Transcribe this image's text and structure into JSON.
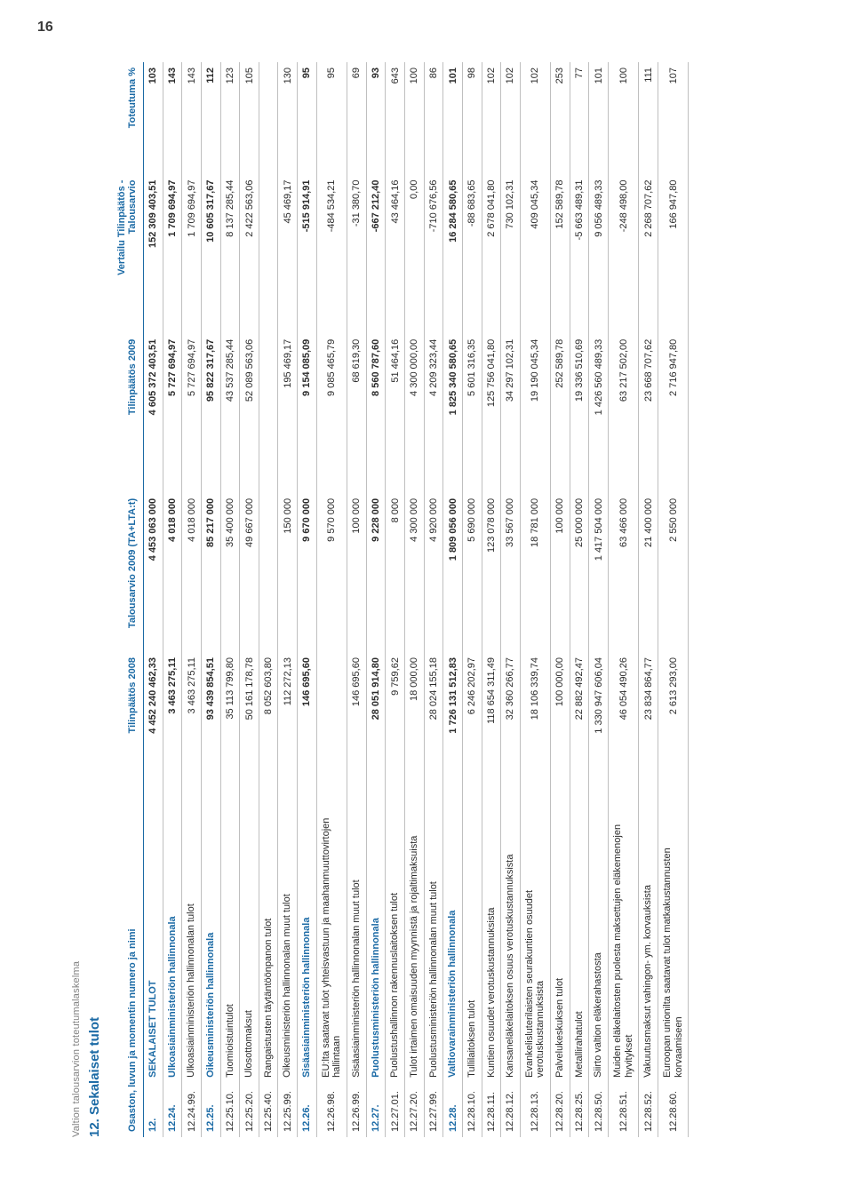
{
  "page_number": "16",
  "supertitle": "Valtion talousarvion toteutumalaskelma",
  "section_title": "12. Sekalaiset tulot",
  "colors": {
    "accent": "#1b6aa5",
    "text": "#2b2b2b",
    "muted": "#808080",
    "rule": "#bfbfbf",
    "background": "#ffffff"
  },
  "columns": {
    "osasto": "Osaston, luvun ja momentin numero ja nimi",
    "tp2008": "Tilinpäätös 2008",
    "ta2009": "Talousarvio 2009 (TA+LTA:t)",
    "tp2009": "Tilinpäätös 2009",
    "diff": "Vertailu Tilinpäätös - Talousarvio",
    "pct": "Toteutuma %"
  },
  "rows": [
    {
      "bold": true,
      "code": "12.",
      "name": "SEKALAISET TULOT",
      "tp2008": "4 452 240 462,33",
      "ta2009": "4 453 063 000",
      "tp2009": "4 605 372 403,51",
      "diff": "152 309 403,51",
      "pct": "103"
    },
    {
      "bold": true,
      "code": "12.24.",
      "name": "Ulkoasiainministeriön hallinnonala",
      "tp2008": "3 463 275,11",
      "ta2009": "4 018 000",
      "tp2009": "5 727 694,97",
      "diff": "1 709 694,97",
      "pct": "143"
    },
    {
      "bold": false,
      "code": "12.24.99.",
      "name": "Ulkoasiainministeriön hallinnonalan tulot",
      "tp2008": "3 463 275,11",
      "ta2009": "4 018 000",
      "tp2009": "5 727 694,97",
      "diff": "1 709 694,97",
      "pct": "143"
    },
    {
      "bold": true,
      "code": "12.25.",
      "name": "Oikeusministeriön hallinnonala",
      "tp2008": "93 439 854,51",
      "ta2009": "85 217 000",
      "tp2009": "95 822 317,67",
      "diff": "10 605 317,67",
      "pct": "112"
    },
    {
      "bold": false,
      "code": "12.25.10.",
      "name": "Tuomioistuintulot",
      "tp2008": "35 113 799,80",
      "ta2009": "35 400 000",
      "tp2009": "43 537 285,44",
      "diff": "8 137 285,44",
      "pct": "123"
    },
    {
      "bold": false,
      "code": "12.25.20.",
      "name": "Ulosottomaksut",
      "tp2008": "50 161 178,78",
      "ta2009": "49 667 000",
      "tp2009": "52 089 563,06",
      "diff": "2 422 563,06",
      "pct": "105"
    },
    {
      "bold": false,
      "code": "12.25.40.",
      "name": "Rangaistusten täytäntöönpanon tulot",
      "tp2008": "8 052 603,80",
      "ta2009": "",
      "tp2009": "",
      "diff": "",
      "pct": ""
    },
    {
      "bold": false,
      "code": "12.25.99.",
      "name": "Oikeusministeriön hallinnonalan muut tulot",
      "tp2008": "112 272,13",
      "ta2009": "150 000",
      "tp2009": "195 469,17",
      "diff": "45 469,17",
      "pct": "130"
    },
    {
      "bold": true,
      "code": "12.26.",
      "name": "Sisäasiainministeriön hallinnonala",
      "tp2008": "146 695,60",
      "ta2009": "9 670 000",
      "tp2009": "9 154 085,09",
      "diff": "-515 914,91",
      "pct": "95"
    },
    {
      "bold": false,
      "code": "12.26.98.",
      "name": "EU:lta saatavat tulot yhteisvastuun ja maahanmuuttovirtojen hallintaan",
      "tp2008": "",
      "ta2009": "9 570 000",
      "tp2009": "9 085 465,79",
      "diff": "-484 534,21",
      "pct": "95"
    },
    {
      "bold": false,
      "code": "12.26.99.",
      "name": "Sisäasiainministeriön hallinnonalan muut tulot",
      "tp2008": "146 695,60",
      "ta2009": "100 000",
      "tp2009": "68 619,30",
      "diff": "-31 380,70",
      "pct": "69"
    },
    {
      "bold": true,
      "code": "12.27.",
      "name": "Puolustusministeriön hallinnonala",
      "tp2008": "28 051 914,80",
      "ta2009": "9 228 000",
      "tp2009": "8 560 787,60",
      "diff": "-667 212,40",
      "pct": "93"
    },
    {
      "bold": false,
      "code": "12.27.01.",
      "name": "Puolustushallinnon rakennuslaitoksen tulot",
      "tp2008": "9 759,62",
      "ta2009": "8 000",
      "tp2009": "51 464,16",
      "diff": "43 464,16",
      "pct": "643"
    },
    {
      "bold": false,
      "code": "12.27.20.",
      "name": "Tulot irtaimen omaisuuden myynnistä ja rojaltimaksuista",
      "tp2008": "18 000,00",
      "ta2009": "4 300 000",
      "tp2009": "4 300 000,00",
      "diff": "0,00",
      "pct": "100"
    },
    {
      "bold": false,
      "code": "12.27.99.",
      "name": "Puolustusministeriön hallinnonalan muut tulot",
      "tp2008": "28 024 155,18",
      "ta2009": "4 920 000",
      "tp2009": "4 209 323,44",
      "diff": "-710 676,56",
      "pct": "86"
    },
    {
      "bold": true,
      "code": "12.28.",
      "name": "Valtiovarainministeriön hallinnonala",
      "tp2008": "1 726 131 512,83",
      "ta2009": "1 809 056 000",
      "tp2009": "1 825 340 580,65",
      "diff": "16 284 580,65",
      "pct": "101"
    },
    {
      "bold": false,
      "code": "12.28.10.",
      "name": "Tullilaitoksen tulot",
      "tp2008": "6 246 202,97",
      "ta2009": "5 690 000",
      "tp2009": "5 601 316,35",
      "diff": "-88 683,65",
      "pct": "98"
    },
    {
      "bold": false,
      "code": "12.28.11.",
      "name": "Kuntien osuudet verotuskustannuksista",
      "tp2008": "118 654 311,49",
      "ta2009": "123 078 000",
      "tp2009": "125 756 041,80",
      "diff": "2 678 041,80",
      "pct": "102"
    },
    {
      "bold": false,
      "code": "12.28.12.",
      "name": "Kansaneläkelaitoksen osuus verotuskustannuksista",
      "tp2008": "32 360 266,77",
      "ta2009": "33 567 000",
      "tp2009": "34 297 102,31",
      "diff": "730 102,31",
      "pct": "102"
    },
    {
      "bold": false,
      "code": "12.28.13.",
      "name": "Evankelisluterilaisten seurakuntien osuudet verotuskustannuksista",
      "tp2008": "18 106 339,74",
      "ta2009": "18 781 000",
      "tp2009": "19 190 045,34",
      "diff": "409 045,34",
      "pct": "102"
    },
    {
      "bold": false,
      "code": "12.28.20.",
      "name": "Palvelukeskuksen tulot",
      "tp2008": "100 000,00",
      "ta2009": "100 000",
      "tp2009": "252 589,78",
      "diff": "152 589,78",
      "pct": "253"
    },
    {
      "bold": false,
      "code": "12.28.25.",
      "name": "Metallirahatulot",
      "tp2008": "22 882 492,47",
      "ta2009": "25 000 000",
      "tp2009": "19 336 510,69",
      "diff": "-5 663 489,31",
      "pct": "77"
    },
    {
      "bold": false,
      "code": "12.28.50.",
      "name": "Siirto valtion eläkerahastosta",
      "tp2008": "1 330 947 606,04",
      "ta2009": "1 417 504 000",
      "tp2009": "1 426 560 489,33",
      "diff": "9 056 489,33",
      "pct": "101"
    },
    {
      "bold": false,
      "code": "12.28.51.",
      "name": "Muiden eläkelaitosten puolesta maksettujen eläkemenojen hyvitykset",
      "tp2008": "46 054 490,26",
      "ta2009": "63 466 000",
      "tp2009": "63 217 502,00",
      "diff": "-248 498,00",
      "pct": "100"
    },
    {
      "bold": false,
      "code": "12.28.52.",
      "name": "Vakuutusmaksut vahingon- ym. korvauksista",
      "tp2008": "23 834 864,77",
      "ta2009": "21 400 000",
      "tp2009": "23 668 707,62",
      "diff": "2 268 707,62",
      "pct": "111"
    },
    {
      "bold": false,
      "code": "12.28.60.",
      "name": "Euroopan unionilta saatavat tulot matkakustannusten korvaamiseen",
      "tp2008": "2 613 293,00",
      "ta2009": "2 550 000",
      "tp2009": "2 716 947,80",
      "diff": "166 947,80",
      "pct": "107"
    }
  ]
}
